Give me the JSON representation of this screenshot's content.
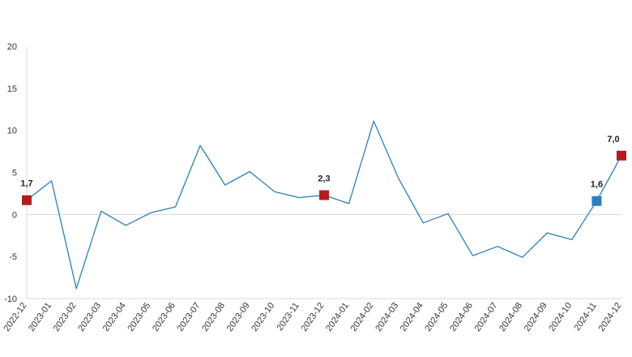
{
  "chart_data": {
    "type": "line",
    "title": "",
    "xlabel": "",
    "ylabel": "",
    "ylim": [
      -10,
      20
    ],
    "yticks": [
      -10,
      -5,
      0,
      5,
      10,
      15,
      20
    ],
    "grid": false,
    "categories": [
      "2022-12",
      "2023-01",
      "2023-02",
      "2023-03",
      "2023-04",
      "2023-05",
      "2023-06",
      "2023-07",
      "2023-08",
      "2023-09",
      "2023-10",
      "2023-11",
      "2023-12",
      "2024-01",
      "2024-02",
      "2024-03",
      "2024-04",
      "2024-05",
      "2024-06",
      "2024-07",
      "2024-08",
      "2024-09",
      "2024-10",
      "2024-11",
      "2024-12"
    ],
    "series": [
      {
        "name": "",
        "color": "#2e7fb8",
        "values": [
          1.7,
          4.0,
          -8.8,
          0.4,
          -1.3,
          0.2,
          0.9,
          8.2,
          3.5,
          5.1,
          2.7,
          2.0,
          2.3,
          1.3,
          11.1,
          4.3,
          -1.0,
          0.1,
          -4.9,
          -3.8,
          -5.1,
          -2.2,
          -3.0,
          1.6,
          7.0
        ]
      }
    ],
    "markers": [
      {
        "index": 0,
        "label": "1,7",
        "color": "#b01c20"
      },
      {
        "index": 12,
        "label": "2,3",
        "color": "#b01c20"
      },
      {
        "index": 23,
        "label": "1,6",
        "color": "#2e7fb8"
      },
      {
        "index": 24,
        "label": "7,0",
        "color": "#b01c20"
      }
    ],
    "axis_color": "#d9d9d9"
  }
}
